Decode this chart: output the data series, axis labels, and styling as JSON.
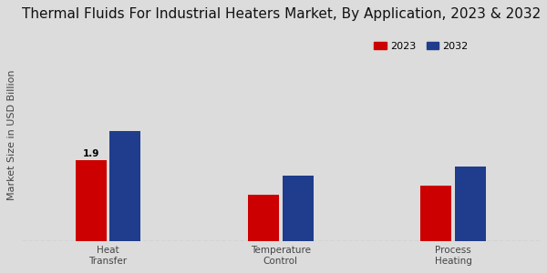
{
  "title": "Thermal Fluids For Industrial Heaters Market, By Application, 2023 & 2032",
  "ylabel": "Market Size in USD Billion",
  "categories": [
    "Heat\nTransfer",
    "Temperature\nControl",
    "Process\nHeating"
  ],
  "values_2023": [
    1.9,
    1.1,
    1.3
  ],
  "values_2032": [
    2.6,
    1.55,
    1.75
  ],
  "color_2023": "#cc0000",
  "color_2032": "#1f3d8c",
  "annotation_text": "1.9",
  "background_color": "#dcdcdc",
  "bar_width": 0.18,
  "ylim": [
    0,
    5.0
  ],
  "legend_labels": [
    "2023",
    "2032"
  ],
  "title_fontsize": 11,
  "label_fontsize": 8,
  "tick_fontsize": 7.5,
  "group_positions": [
    0.5,
    1.5,
    2.5
  ],
  "xlim": [
    0,
    3.0
  ]
}
